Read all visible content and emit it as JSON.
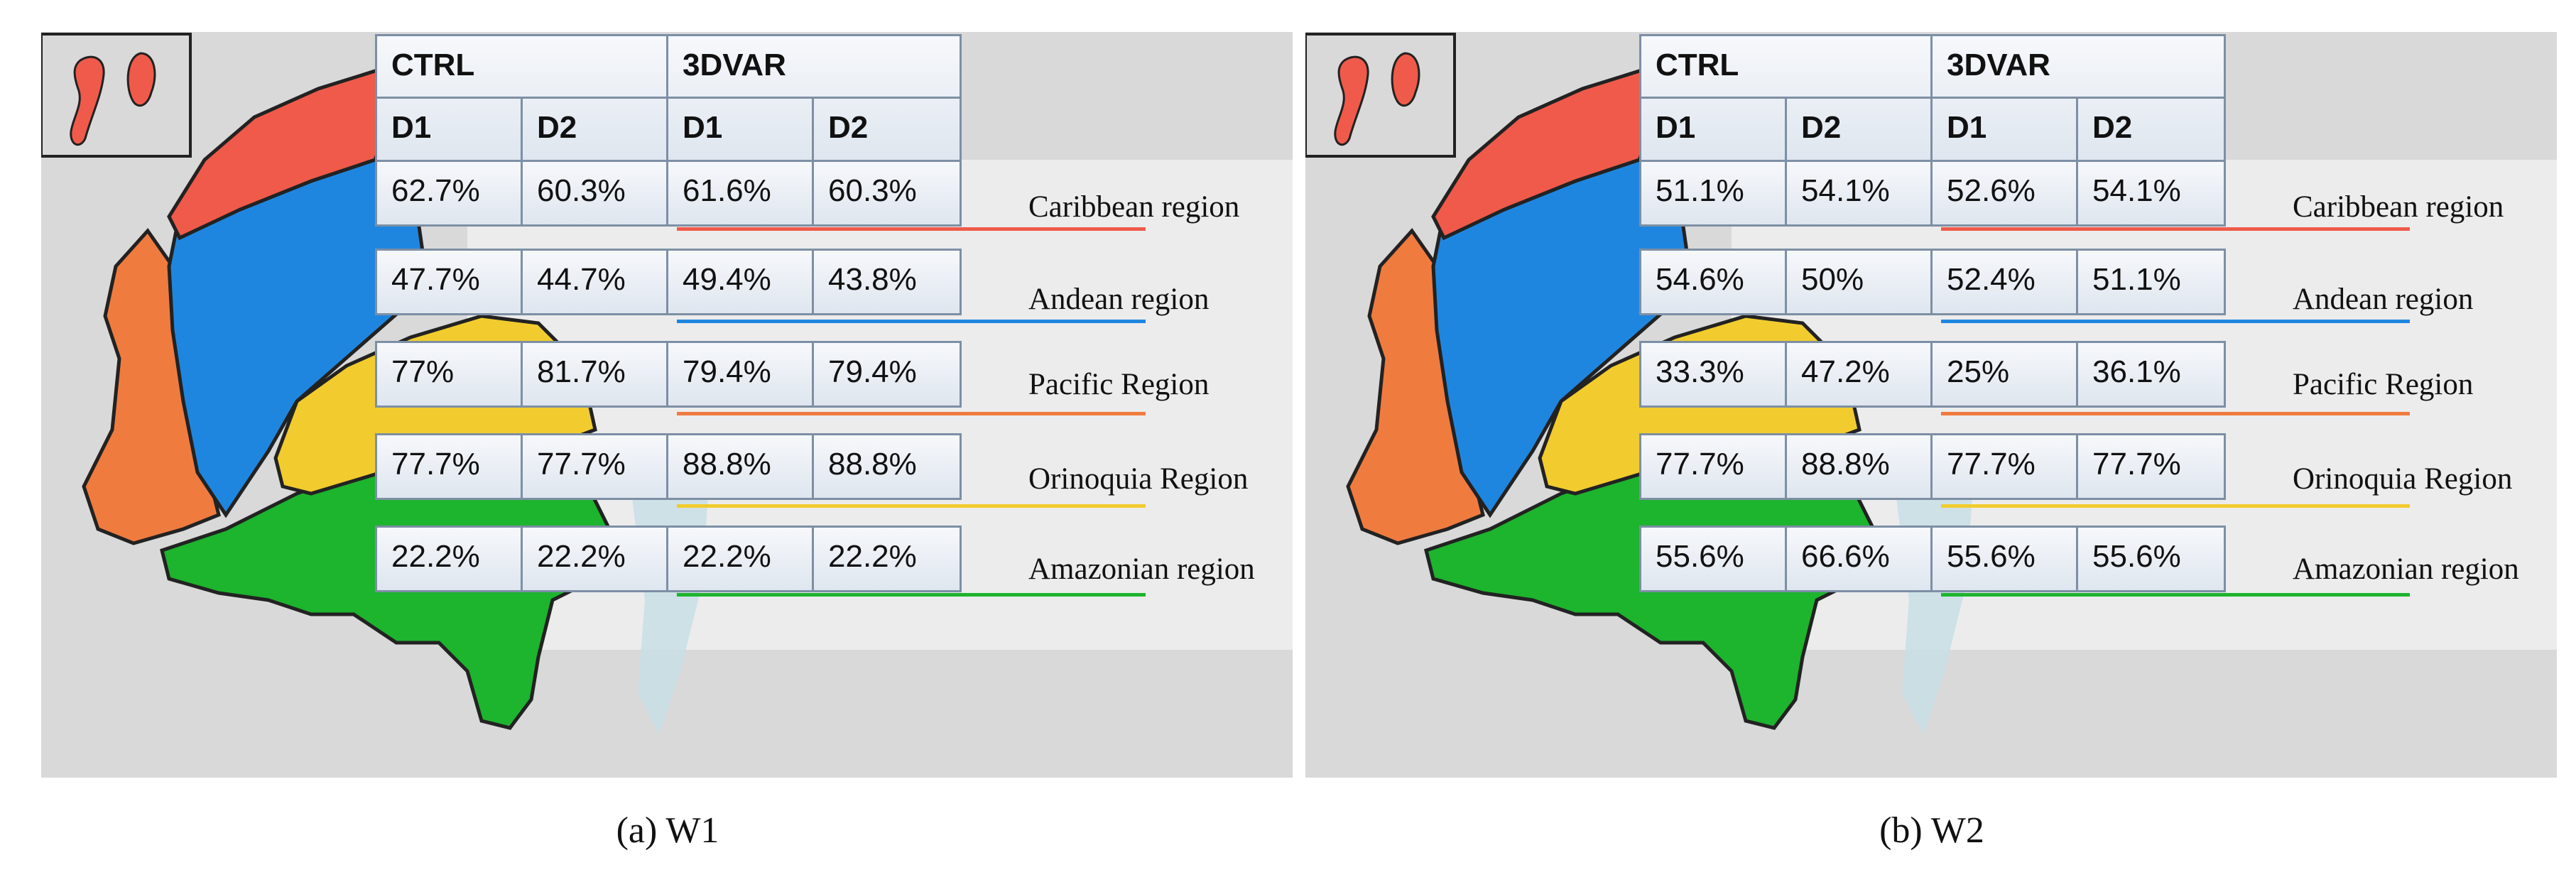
{
  "headers": {
    "groups": [
      "CTRL",
      "3DVAR"
    ],
    "cols": [
      "D1",
      "D2",
      "D1",
      "D2"
    ]
  },
  "regions": [
    {
      "name": "Caribbean region",
      "color": "#f05a4a"
    },
    {
      "name": "Andean region",
      "color": "#1f86e0"
    },
    {
      "name": "Pacific Region",
      "color": "#f07b3f"
    },
    {
      "name": "Orinoquia Region",
      "color": "#f2cc2e"
    },
    {
      "name": "Amazonian region",
      "color": "#1db42e"
    }
  ],
  "panels": [
    {
      "caption": "(a)  W1",
      "rows": [
        [
          "62.7%",
          "60.3%",
          "61.6%",
          "60.3%"
        ],
        [
          "47.7%",
          "44.7%",
          "49.4%",
          "43.8%"
        ],
        [
          "77%",
          "81.7%",
          "79.4%",
          "79.4%"
        ],
        [
          "77.7%",
          "77.7%",
          "88.8%",
          "88.8%"
        ],
        [
          "22.2%",
          "22.2%",
          "22.2%",
          "22.2%"
        ]
      ]
    },
    {
      "caption": "(b)  W2",
      "rows": [
        [
          "51.1%",
          "54.1%",
          "52.6%",
          "54.1%"
        ],
        [
          "54.6%",
          "50%",
          "52.4%",
          "51.1%"
        ],
        [
          "33.3%",
          "47.2%",
          "25%",
          "36.1%"
        ],
        [
          "77.7%",
          "88.8%",
          "77.7%",
          "77.7%"
        ],
        [
          "55.6%",
          "66.6%",
          "55.6%",
          "55.6%"
        ]
      ]
    }
  ]
}
